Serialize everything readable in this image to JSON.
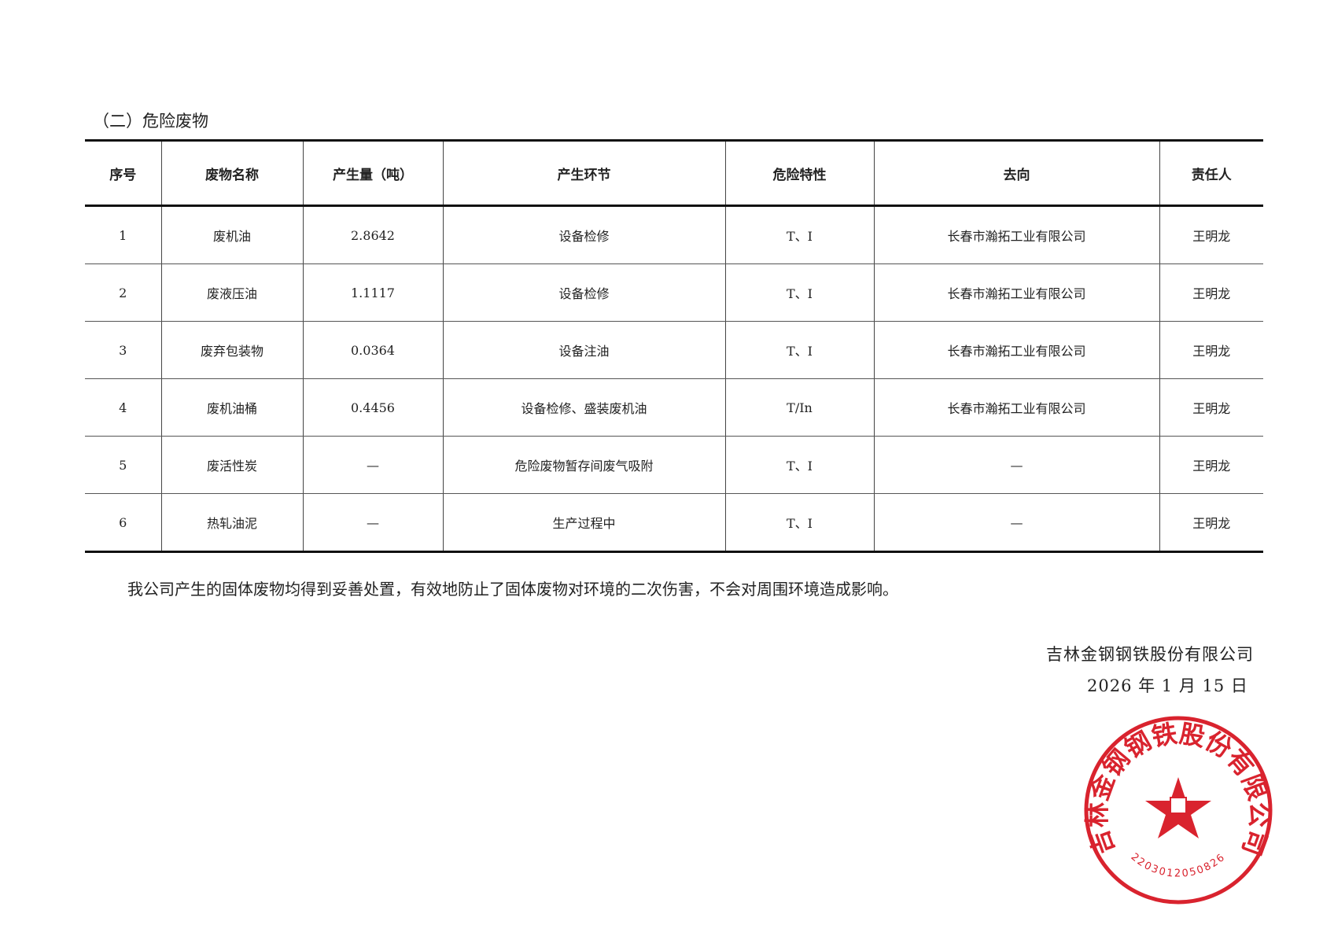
{
  "section_title": "（二）危险废物",
  "table": {
    "headers": [
      "序号",
      "废物名称",
      "产生量（吨）",
      "产生环节",
      "危险特性",
      "去向",
      "责任人"
    ],
    "rows": [
      [
        "1",
        "废机油",
        "2.8642",
        "设备检修",
        "T、I",
        "长春市瀚拓工业有限公司",
        "王明龙"
      ],
      [
        "2",
        "废液压油",
        "1.1117",
        "设备检修",
        "T、I",
        "长春市瀚拓工业有限公司",
        "王明龙"
      ],
      [
        "3",
        "废弃包装物",
        "0.0364",
        "设备注油",
        "T、I",
        "长春市瀚拓工业有限公司",
        "王明龙"
      ],
      [
        "4",
        "废机油桶",
        "0.4456",
        "设备检修、盛装废机油",
        "T/In",
        "长春市瀚拓工业有限公司",
        "王明龙"
      ],
      [
        "5",
        "废活性炭",
        "—",
        "危险废物暂存间废气吸附",
        "T、I",
        "—",
        "王明龙"
      ],
      [
        "6",
        "热轧油泥",
        "—",
        "生产过程中",
        "T、I",
        "—",
        "王明龙"
      ]
    ]
  },
  "statement": "我公司产生的固体废物均得到妥善处置，有效地防止了固体废物对环境的二次伤害，不会对周围环境造成影响。",
  "signature": {
    "company": "吉林金钢钢铁股份有限公司",
    "date": "2026 年 1 月 15 日"
  },
  "stamp": {
    "text": "吉林金钢钢铁股份有限公司",
    "code": "2203012050826",
    "color": "#d9232e"
  }
}
